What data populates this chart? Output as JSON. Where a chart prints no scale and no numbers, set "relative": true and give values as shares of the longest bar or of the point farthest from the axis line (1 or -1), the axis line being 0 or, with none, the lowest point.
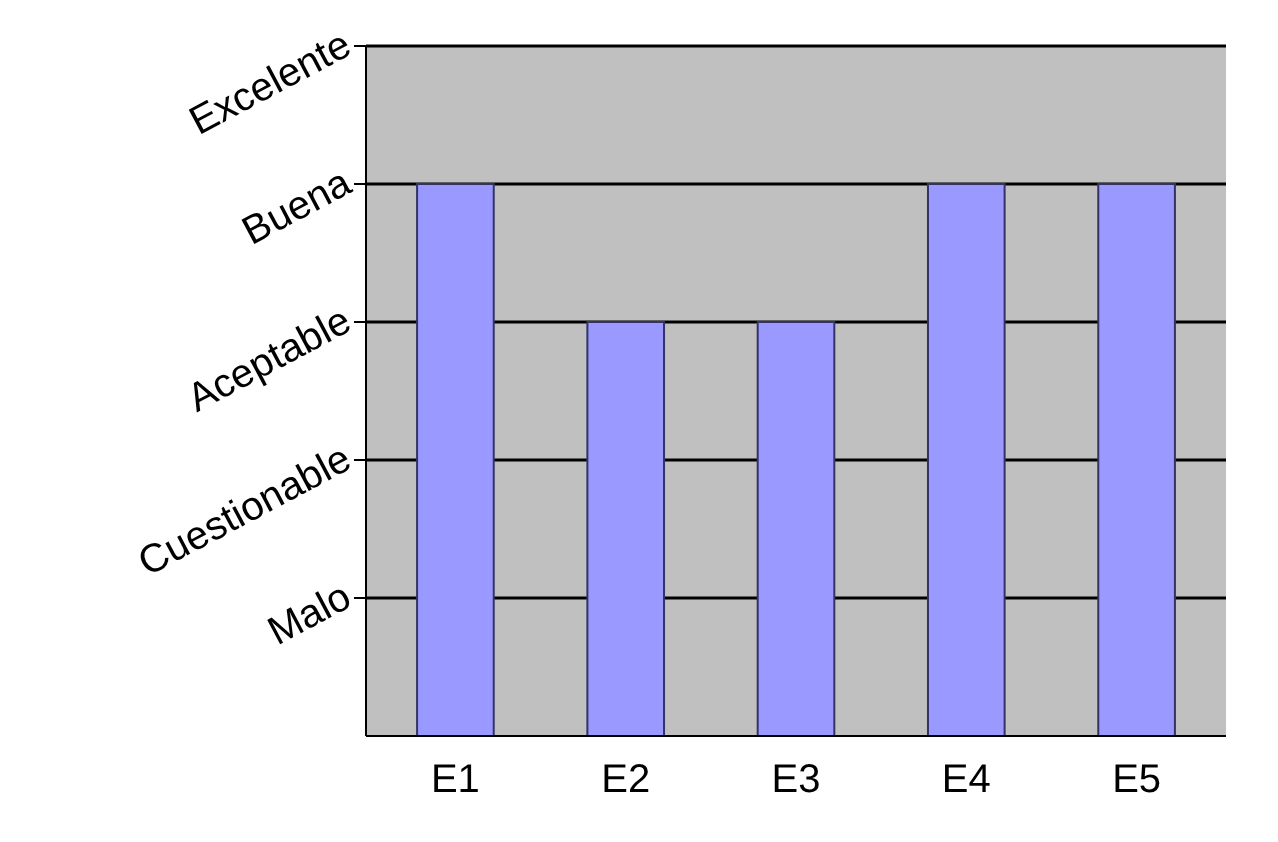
{
  "chart_data": {
    "type": "bar",
    "categories": [
      "E1",
      "E2",
      "E3",
      "E4",
      "E5"
    ],
    "values": [
      1,
      0.75,
      0.75,
      1,
      1
    ],
    "color": "#9999ff",
    "relative": true,
    "annotations": [
      "Malo",
      "Cuestionable",
      "Aceptable",
      "Buena",
      "Excelente"
    ],
    "grid": "y"
  }
}
